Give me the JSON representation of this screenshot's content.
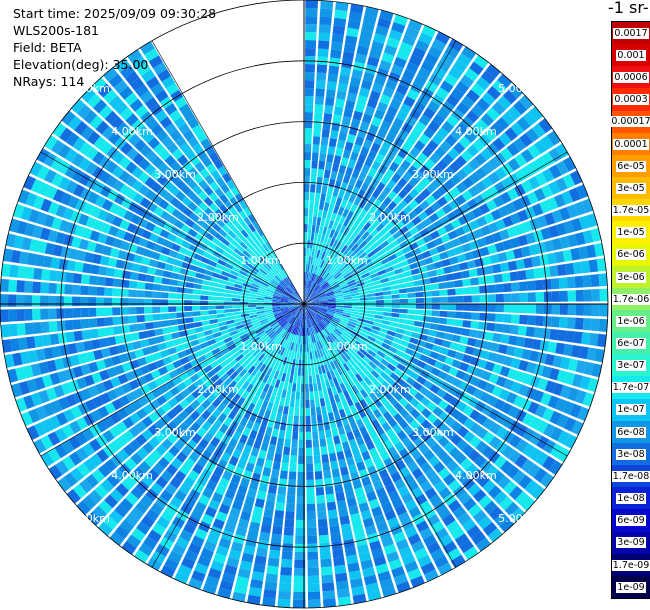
{
  "header": {
    "start_time": "Start time: 2025/09/09 09:30:28",
    "instrument": "WLS200s-181",
    "field": "Field: BETA",
    "elevation": "Elevation(deg): 35.00",
    "nrays": "NRays: 114"
  },
  "colorbar": {
    "unit_label": "-1 sr-",
    "levels": [
      {
        "label": "0.0017",
        "color": "#c00000"
      },
      {
        "label": "0.001",
        "color": "#d80000"
      },
      {
        "label": "0.0006",
        "color": "#ec1010"
      },
      {
        "label": "0.0003",
        "color": "#ff2a00"
      },
      {
        "label": "0.00017",
        "color": "#ff5500"
      },
      {
        "label": "0.0001",
        "color": "#ff8000"
      },
      {
        "label": "6e-05",
        "color": "#ff9e00"
      },
      {
        "label": "3e-05",
        "color": "#ffbb00"
      },
      {
        "label": "1.7e-05",
        "color": "#ffd700"
      },
      {
        "label": "1e-05",
        "color": "#ffef00"
      },
      {
        "label": "6e-06",
        "color": "#e8f800"
      },
      {
        "label": "3e-06",
        "color": "#bff22e"
      },
      {
        "label": "1.7e-06",
        "color": "#8ef062"
      },
      {
        "label": "1e-06",
        "color": "#66ee88"
      },
      {
        "label": "6e-07",
        "color": "#44f0aa"
      },
      {
        "label": "3e-07",
        "color": "#2af4d2"
      },
      {
        "label": "1.7e-07",
        "color": "#16e8ee"
      },
      {
        "label": "1e-07",
        "color": "#0fc4f2"
      },
      {
        "label": "6e-08",
        "color": "#1296e6"
      },
      {
        "label": "3e-08",
        "color": "#126ee0"
      },
      {
        "label": "1.7e-08",
        "color": "#0e46dc"
      },
      {
        "label": "1e-08",
        "color": "#0a22d6"
      },
      {
        "label": "6e-09",
        "color": "#0606cc"
      },
      {
        "label": "3e-09",
        "color": "#0404a8"
      },
      {
        "label": "1.7e-09",
        "color": "#020274"
      },
      {
        "label": "1e-09",
        "color": "#01014e"
      }
    ]
  },
  "chart_data": {
    "type": "heatmap",
    "projection": "polar",
    "range_rings_km": [
      1.0,
      2.0,
      3.0,
      4.0,
      5.0
    ],
    "ring_labels": [
      "1.00km",
      "2.00km",
      "3.00km",
      "4.00km",
      "5.00km"
    ],
    "max_range_km": 5.0,
    "azimuth_gap_deg": [
      -30,
      0
    ],
    "nrays": 114,
    "value_range": [
      1e-09,
      0.0017
    ],
    "scale": "log",
    "grid": true
  }
}
